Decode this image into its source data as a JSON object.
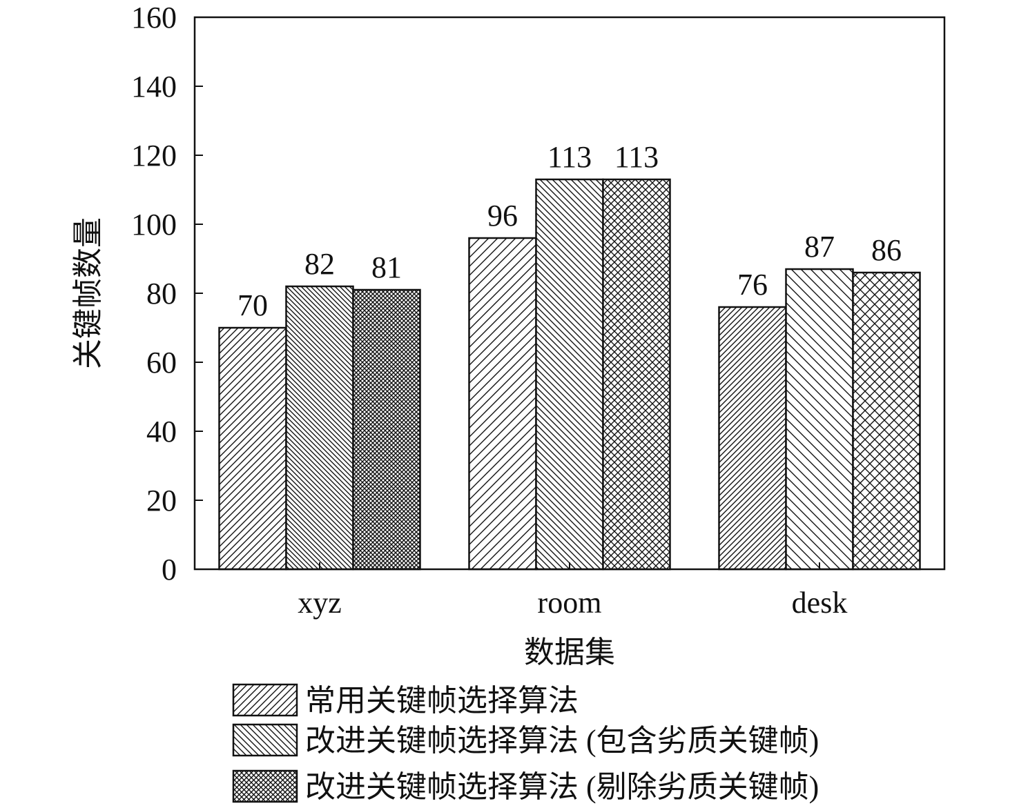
{
  "chart_data": {
    "type": "bar",
    "title": "",
    "xlabel": "数据集",
    "ylabel": "关键帧数量",
    "categories": [
      "xyz",
      "room",
      "desk"
    ],
    "ylim": [
      0,
      160
    ],
    "yticks": [
      0,
      20,
      40,
      60,
      80,
      100,
      120,
      140,
      160
    ],
    "grid": false,
    "legend_placement": "bottom",
    "series": [
      {
        "name": "常用关键帧选择算法",
        "values": [
          70,
          96,
          76
        ],
        "pattern": "diagonal-forward"
      },
      {
        "name": "改进关键帧选择算法 (包含劣质关键帧)",
        "values": [
          82,
          113,
          87
        ],
        "pattern": "diagonal-backward"
      },
      {
        "name": "改进关键帧选择算法 (剔除劣质关键帧)",
        "values": [
          81,
          113,
          86
        ],
        "pattern": "crosshatch"
      }
    ],
    "colors": {
      "ink": "#111111",
      "background": "#ffffff"
    }
  }
}
